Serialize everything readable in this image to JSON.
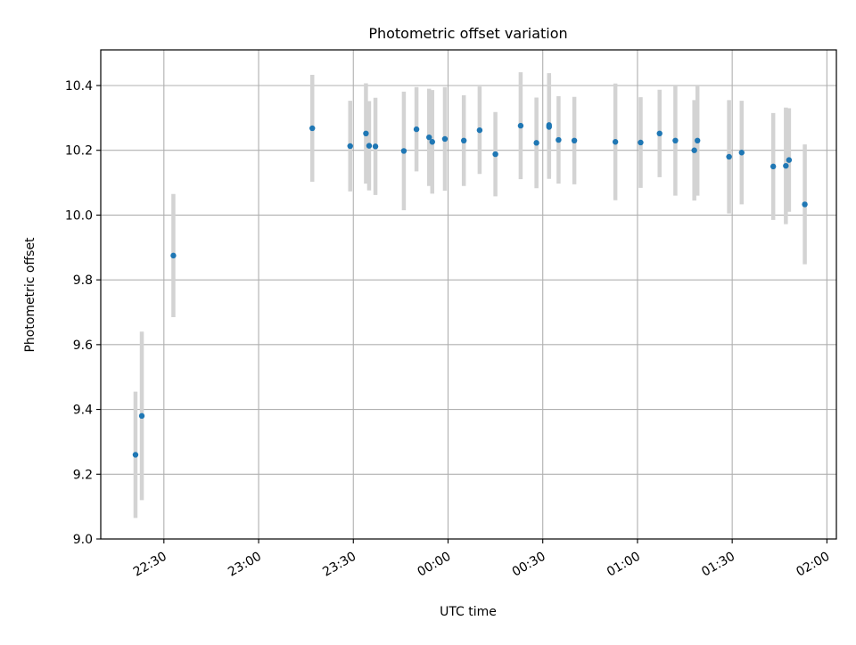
{
  "chart_data": {
    "type": "scatter",
    "title": "Photometric offset variation",
    "xlabel": "UTC time",
    "ylabel": "Photometric offset",
    "x_axis_kind": "time",
    "xlim": [
      "22:10",
      "02:03"
    ],
    "ylim": [
      9.0,
      10.51
    ],
    "grid": true,
    "x_ticks": [
      "22:30",
      "23:00",
      "23:30",
      "00:00",
      "00:30",
      "01:00",
      "01:30",
      "02:00"
    ],
    "y_ticks": [
      "9.0",
      "9.2",
      "9.4",
      "9.6",
      "9.8",
      "10.0",
      "10.2",
      "10.4"
    ],
    "colors": {
      "marker": "#1f77b4",
      "errorbar": "#d3d3d3",
      "grid": "#b0b0b0"
    },
    "series": [
      {
        "points": [
          {
            "time": "22:21",
            "y": 9.26,
            "err": 0.195
          },
          {
            "time": "22:23",
            "y": 9.38,
            "err": 0.26
          },
          {
            "time": "22:33",
            "y": 9.875,
            "err": 0.19
          },
          {
            "time": "23:17",
            "y": 10.268,
            "err": 0.165
          },
          {
            "time": "23:29",
            "y": 10.213,
            "err": 0.14
          },
          {
            "time": "23:34",
            "y": 10.252,
            "err": 0.155
          },
          {
            "time": "23:35",
            "y": 10.214,
            "err": 0.138
          },
          {
            "time": "23:37",
            "y": 10.212,
            "err": 0.15
          },
          {
            "time": "23:46",
            "y": 10.198,
            "err": 0.183
          },
          {
            "time": "23:50",
            "y": 10.265,
            "err": 0.13
          },
          {
            "time": "23:54",
            "y": 10.24,
            "err": 0.15
          },
          {
            "time": "23:55",
            "y": 10.226,
            "err": 0.16
          },
          {
            "time": "23:59",
            "y": 10.235,
            "err": 0.16
          },
          {
            "time": "00:05",
            "y": 10.23,
            "err": 0.14
          },
          {
            "time": "00:10",
            "y": 10.262,
            "err": 0.135
          },
          {
            "time": "00:15",
            "y": 10.188,
            "err": 0.13
          },
          {
            "time": "00:23",
            "y": 10.276,
            "err": 0.165
          },
          {
            "time": "00:28",
            "y": 10.223,
            "err": 0.14
          },
          {
            "time": "00:32",
            "y": 10.278,
            "err": 0.16
          },
          {
            "time": "00:32",
            "y": 10.272,
            "err": 0.16
          },
          {
            "time": "00:35",
            "y": 10.232,
            "err": 0.135
          },
          {
            "time": "00:40",
            "y": 10.23,
            "err": 0.135
          },
          {
            "time": "00:53",
            "y": 10.226,
            "err": 0.18
          },
          {
            "time": "01:01",
            "y": 10.224,
            "err": 0.14
          },
          {
            "time": "01:07",
            "y": 10.252,
            "err": 0.135
          },
          {
            "time": "01:12",
            "y": 10.23,
            "err": 0.17
          },
          {
            "time": "01:18",
            "y": 10.2,
            "err": 0.155
          },
          {
            "time": "01:19",
            "y": 10.23,
            "err": 0.17
          },
          {
            "time": "01:29",
            "y": 10.18,
            "err": 0.175
          },
          {
            "time": "01:33",
            "y": 10.193,
            "err": 0.16
          },
          {
            "time": "01:43",
            "y": 10.15,
            "err": 0.165
          },
          {
            "time": "01:47",
            "y": 10.152,
            "err": 0.18
          },
          {
            "time": "01:48",
            "y": 10.17,
            "err": 0.16
          },
          {
            "time": "01:53",
            "y": 10.033,
            "err": 0.185
          }
        ]
      }
    ]
  }
}
